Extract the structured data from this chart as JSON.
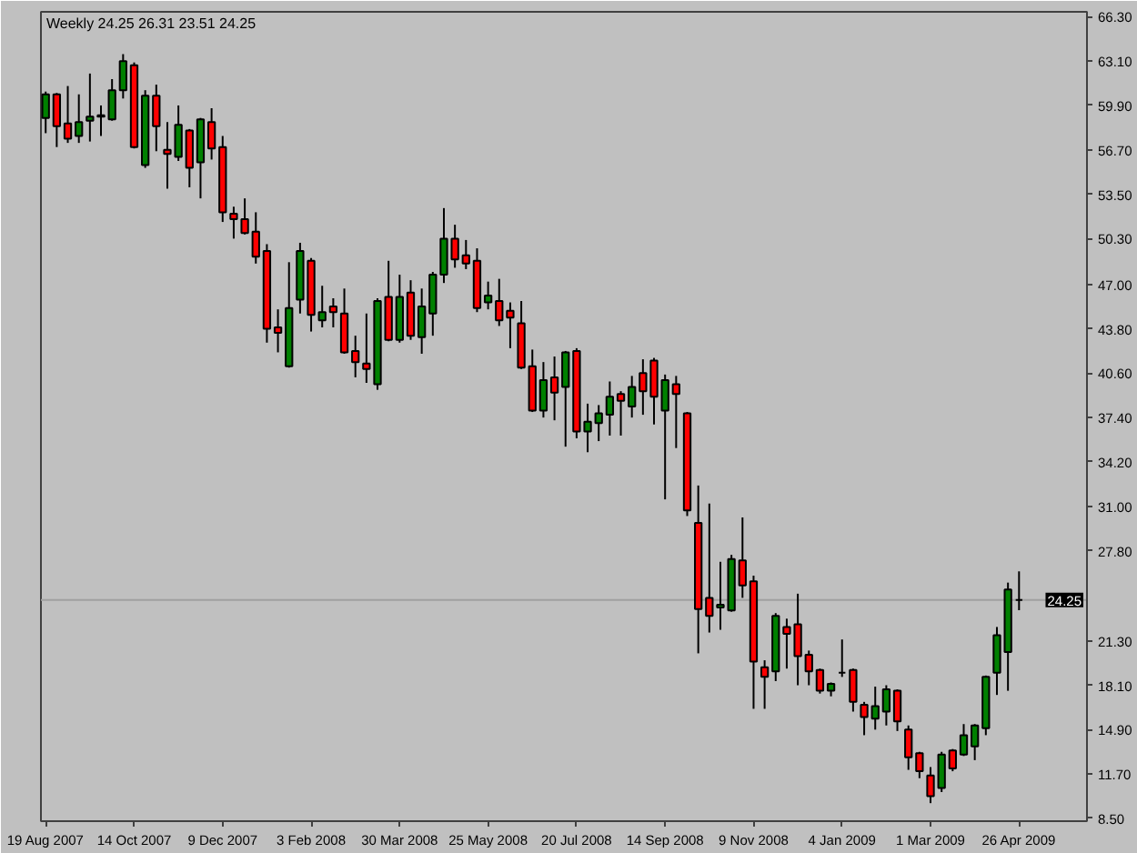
{
  "chart_data": {
    "type": "candlestick",
    "title": "Weekly  24.25 26.31 23.51 24.25",
    "x": [
      "2007-08-19",
      "2007-08-26",
      "2007-09-02",
      "2007-09-09",
      "2007-09-16",
      "2007-09-23",
      "2007-09-30",
      "2007-10-07",
      "2007-10-14",
      "2007-10-21",
      "2007-10-28",
      "2007-11-04",
      "2007-11-11",
      "2007-11-18",
      "2007-11-25",
      "2007-12-02",
      "2007-12-09",
      "2007-12-16",
      "2007-12-23",
      "2007-12-30",
      "2008-01-06",
      "2008-01-13",
      "2008-01-20",
      "2008-01-27",
      "2008-02-03",
      "2008-02-10",
      "2008-02-17",
      "2008-02-24",
      "2008-03-02",
      "2008-03-09",
      "2008-03-16",
      "2008-03-23",
      "2008-03-30",
      "2008-04-06",
      "2008-04-13",
      "2008-04-20",
      "2008-04-27",
      "2008-05-04",
      "2008-05-11",
      "2008-05-18",
      "2008-05-25",
      "2008-06-01",
      "2008-06-08",
      "2008-06-15",
      "2008-06-22",
      "2008-06-29",
      "2008-07-06",
      "2008-07-13",
      "2008-07-20",
      "2008-07-27",
      "2008-08-03",
      "2008-08-10",
      "2008-08-17",
      "2008-08-24",
      "2008-08-31",
      "2008-09-07",
      "2008-09-14",
      "2008-09-21",
      "2008-09-28",
      "2008-10-05",
      "2008-10-12",
      "2008-10-19",
      "2008-10-26",
      "2008-11-02",
      "2008-11-09",
      "2008-11-16",
      "2008-11-23",
      "2008-11-30",
      "2008-12-07",
      "2008-12-14",
      "2008-12-21",
      "2008-12-28",
      "2009-01-04",
      "2009-01-11",
      "2009-01-18",
      "2009-01-25",
      "2009-02-01",
      "2009-02-08",
      "2009-02-15",
      "2009-02-22",
      "2009-03-01",
      "2009-03-08",
      "2009-03-15",
      "2009-03-22",
      "2009-03-29",
      "2009-04-05",
      "2009-04-12",
      "2009-04-19",
      "2009-04-26"
    ],
    "ohlc": [
      [
        59.0,
        60.9,
        57.9,
        60.7
      ],
      [
        60.7,
        60.8,
        56.9,
        58.4
      ],
      [
        58.6,
        61.3,
        57.2,
        57.5
      ],
      [
        57.7,
        60.7,
        57.2,
        58.7
      ],
      [
        58.8,
        62.2,
        57.3,
        59.1
      ],
      [
        59.1,
        59.9,
        57.7,
        59.2
      ],
      [
        58.9,
        61.8,
        58.8,
        61.0
      ],
      [
        61.0,
        63.6,
        60.4,
        63.1
      ],
      [
        62.8,
        63.0,
        56.8,
        56.9
      ],
      [
        55.6,
        61.0,
        55.4,
        60.6
      ],
      [
        60.6,
        61.4,
        56.6,
        58.4
      ],
      [
        56.7,
        58.7,
        53.9,
        56.4
      ],
      [
        56.2,
        59.9,
        55.9,
        58.5
      ],
      [
        58.1,
        58.2,
        54.0,
        55.4
      ],
      [
        55.8,
        59.0,
        53.2,
        58.9
      ],
      [
        58.7,
        59.7,
        56.0,
        56.8
      ],
      [
        56.9,
        57.7,
        51.5,
        52.2
      ],
      [
        52.1,
        52.6,
        50.3,
        51.7
      ],
      [
        51.7,
        53.2,
        50.6,
        50.7
      ],
      [
        50.8,
        52.2,
        48.5,
        49.0
      ],
      [
        49.4,
        49.9,
        42.8,
        43.8
      ],
      [
        43.9,
        45.2,
        42.1,
        43.5
      ],
      [
        41.1,
        48.6,
        41.0,
        45.3
      ],
      [
        45.9,
        50.0,
        44.9,
        49.4
      ],
      [
        48.7,
        48.9,
        43.6,
        44.8
      ],
      [
        44.4,
        46.9,
        43.9,
        45.0
      ],
      [
        45.4,
        46.0,
        43.9,
        45.0
      ],
      [
        44.9,
        46.7,
        42.0,
        42.1
      ],
      [
        42.2,
        43.3,
        40.3,
        41.4
      ],
      [
        41.3,
        44.9,
        39.9,
        40.9
      ],
      [
        39.8,
        46.0,
        39.4,
        45.8
      ],
      [
        46.1,
        48.7,
        42.9,
        43.0
      ],
      [
        43.0,
        47.7,
        42.8,
        46.1
      ],
      [
        46.4,
        47.3,
        43.0,
        43.3
      ],
      [
        43.2,
        46.7,
        42.0,
        45.4
      ],
      [
        44.9,
        47.9,
        43.3,
        47.7
      ],
      [
        47.7,
        52.5,
        47.1,
        50.3
      ],
      [
        50.3,
        51.3,
        48.2,
        48.8
      ],
      [
        49.1,
        50.2,
        48.1,
        48.5
      ],
      [
        48.7,
        49.6,
        45.0,
        45.3
      ],
      [
        45.7,
        47.2,
        45.2,
        46.2
      ],
      [
        45.8,
        47.4,
        44.0,
        44.4
      ],
      [
        45.1,
        45.7,
        42.4,
        44.6
      ],
      [
        44.2,
        45.8,
        40.9,
        41.0
      ],
      [
        41.1,
        42.3,
        37.8,
        37.9
      ],
      [
        37.9,
        41.4,
        37.4,
        40.1
      ],
      [
        40.3,
        41.8,
        37.2,
        39.2
      ],
      [
        39.6,
        42.2,
        35.3,
        42.1
      ],
      [
        42.2,
        42.4,
        35.9,
        36.4
      ],
      [
        36.4,
        38.4,
        34.9,
        37.1
      ],
      [
        37.0,
        38.3,
        35.7,
        37.7
      ],
      [
        37.6,
        40.0,
        36.1,
        38.9
      ],
      [
        39.1,
        39.3,
        36.1,
        38.6
      ],
      [
        38.2,
        40.4,
        37.4,
        39.6
      ],
      [
        40.6,
        41.6,
        37.6,
        39.3
      ],
      [
        41.5,
        41.7,
        36.9,
        38.9
      ],
      [
        37.9,
        40.5,
        31.5,
        40.1
      ],
      [
        39.8,
        40.4,
        35.2,
        39.1
      ],
      [
        37.7,
        37.8,
        30.3,
        30.7
      ],
      [
        29.8,
        32.5,
        20.4,
        23.6
      ],
      [
        24.4,
        31.2,
        21.9,
        23.1
      ],
      [
        23.7,
        27.0,
        22.1,
        23.9
      ],
      [
        23.5,
        27.5,
        23.4,
        27.2
      ],
      [
        27.1,
        30.2,
        24.4,
        25.3
      ],
      [
        25.6,
        26.0,
        16.4,
        19.8
      ],
      [
        19.4,
        19.9,
        16.4,
        18.7
      ],
      [
        19.1,
        23.3,
        18.4,
        23.1
      ],
      [
        22.3,
        22.9,
        19.3,
        21.8
      ],
      [
        22.5,
        24.7,
        18.1,
        20.2
      ],
      [
        20.3,
        20.6,
        18.1,
        19.1
      ],
      [
        19.2,
        19.3,
        17.5,
        17.7
      ],
      [
        17.7,
        18.3,
        17.3,
        18.2
      ],
      [
        19.0,
        21.4,
        18.7,
        19.0
      ],
      [
        19.2,
        19.3,
        16.2,
        16.9
      ],
      [
        16.7,
        16.9,
        14.5,
        15.8
      ],
      [
        15.7,
        18.0,
        14.9,
        16.6
      ],
      [
        16.2,
        18.1,
        15.2,
        17.8
      ],
      [
        17.7,
        17.8,
        14.8,
        15.5
      ],
      [
        14.9,
        15.2,
        12.0,
        12.9
      ],
      [
        13.2,
        13.3,
        11.4,
        11.9
      ],
      [
        11.6,
        12.2,
        9.6,
        10.1
      ],
      [
        10.7,
        13.3,
        10.4,
        13.1
      ],
      [
        13.4,
        13.5,
        11.9,
        12.1
      ],
      [
        13.1,
        15.3,
        13.0,
        14.5
      ],
      [
        13.7,
        15.3,
        12.7,
        15.2
      ],
      [
        15.0,
        18.8,
        14.5,
        18.7
      ],
      [
        19.0,
        22.3,
        17.4,
        21.7
      ],
      [
        20.5,
        25.5,
        17.7,
        25.0
      ],
      [
        24.25,
        26.31,
        23.51,
        24.25
      ]
    ],
    "colors": [
      "#008000",
      "#ff0000",
      "#ff0000",
      "#008000",
      "#008000",
      "#008000",
      "#008000",
      "#008000",
      "#ff0000",
      "#008000",
      "#ff0000",
      "#ff0000",
      "#008000",
      "#ff0000",
      "#008000",
      "#ff0000",
      "#ff0000",
      "#ff0000",
      "#ff0000",
      "#ff0000",
      "#ff0000",
      "#ff0000",
      "#008000",
      "#008000",
      "#ff0000",
      "#008000",
      "#ff0000",
      "#ff0000",
      "#ff0000",
      "#ff0000",
      "#008000",
      "#ff0000",
      "#008000",
      "#ff0000",
      "#008000",
      "#008000",
      "#008000",
      "#ff0000",
      "#ff0000",
      "#ff0000",
      "#008000",
      "#ff0000",
      "#ff0000",
      "#ff0000",
      "#ff0000",
      "#008000",
      "#ff0000",
      "#008000",
      "#ff0000",
      "#008000",
      "#008000",
      "#008000",
      "#ff0000",
      "#008000",
      "#ff0000",
      "#ff0000",
      "#008000",
      "#ff0000",
      "#ff0000",
      "#ff0000",
      "#ff0000",
      "#008000",
      "#008000",
      "#ff0000",
      "#ff0000",
      "#ff0000",
      "#008000",
      "#ff0000",
      "#ff0000",
      "#ff0000",
      "#ff0000",
      "#008000",
      "#000000",
      "#ff0000",
      "#ff0000",
      "#008000",
      "#008000",
      "#ff0000",
      "#ff0000",
      "#ff0000",
      "#ff0000",
      "#008000",
      "#ff0000",
      "#008000",
      "#008000",
      "#008000",
      "#008000",
      "#008000",
      "#000000"
    ],
    "xlim": [
      "2007-08-16",
      "2009-06-08"
    ],
    "xticks": [
      {
        "value": "2007-08-19",
        "label": "19 Aug 2007"
      },
      {
        "value": "2007-10-14",
        "label": "14 Oct 2007"
      },
      {
        "value": "2007-12-09",
        "label": "9 Dec 2007"
      },
      {
        "value": "2008-02-03",
        "label": "3 Feb 2008"
      },
      {
        "value": "2008-03-30",
        "label": "30 Mar 2008"
      },
      {
        "value": "2008-05-25",
        "label": "25 May 2008"
      },
      {
        "value": "2008-07-20",
        "label": "20 Jul 2008"
      },
      {
        "value": "2008-09-14",
        "label": "14 Sep 2008"
      },
      {
        "value": "2008-11-09",
        "label": "9 Nov 2008"
      },
      {
        "value": "2009-01-04",
        "label": "4 Jan 2009"
      },
      {
        "value": "2009-03-01",
        "label": "1 Mar 2009"
      },
      {
        "value": "2009-04-26",
        "label": "26 Apr 2009"
      }
    ],
    "ylim": [
      8.3,
      66.65
    ],
    "yticks": [
      {
        "value": 66.3,
        "label": "66.30"
      },
      {
        "value": 63.1,
        "label": "63.10"
      },
      {
        "value": 59.9,
        "label": "59.90"
      },
      {
        "value": 56.7,
        "label": "56.70"
      },
      {
        "value": 53.5,
        "label": "53.50"
      },
      {
        "value": 50.3,
        "label": "50.30"
      },
      {
        "value": 47.0,
        "label": "47.00"
      },
      {
        "value": 43.8,
        "label": "43.80"
      },
      {
        "value": 40.6,
        "label": "40.60"
      },
      {
        "value": 37.4,
        "label": "37.40"
      },
      {
        "value": 34.2,
        "label": "34.20"
      },
      {
        "value": 31.0,
        "label": "31.00"
      },
      {
        "value": 27.8,
        "label": "27.80"
      },
      {
        "value": 21.3,
        "label": "21.30"
      },
      {
        "value": 18.1,
        "label": "18.10"
      },
      {
        "value": 14.9,
        "label": "14.90"
      },
      {
        "value": 11.7,
        "label": "11.70"
      },
      {
        "value": 8.5,
        "label": "8.50"
      }
    ],
    "ref_lines": [
      {
        "axis": "y",
        "value": 24.25,
        "label": "24.25",
        "color": "#a0a0a0"
      }
    ]
  }
}
